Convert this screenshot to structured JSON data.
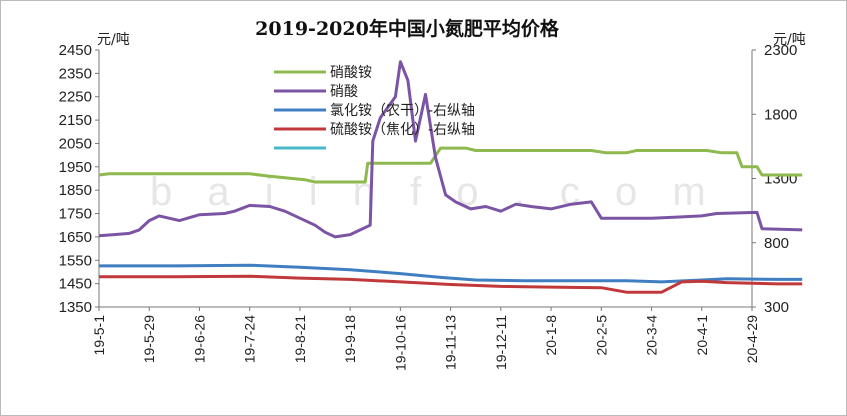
{
  "chart_data": {
    "type": "line",
    "title": "2019-2020年中国小氮肥平均价格",
    "ylabel_left": "元/吨",
    "ylabel_right": "元/吨",
    "watermark": "b a i i n f o . c o m",
    "left_axis": {
      "min": 1350,
      "max": 2450,
      "ticks": [
        1350,
        1450,
        1550,
        1650,
        1750,
        1850,
        1950,
        2050,
        2150,
        2250,
        2350,
        2450
      ]
    },
    "right_axis": {
      "min": 300,
      "max": 2300,
      "ticks": [
        300,
        800,
        1300,
        1800,
        2300
      ]
    },
    "x_ticks": [
      "19-5-1",
      "19-5-29",
      "19-6-26",
      "19-7-24",
      "19-8-21",
      "19-9-18",
      "19-10-16",
      "19-11-13",
      "19-12-11",
      "20-1-8",
      "20-2-5",
      "20-3-4",
      "20-4-1",
      "20-4-29"
    ],
    "legend_placement": "top-center",
    "series": [
      {
        "name": "硝酸铵",
        "axis": "left",
        "color": "#8db94e",
        "points": [
          [
            0,
            1915
          ],
          [
            0.2,
            1920
          ],
          [
            3,
            1920
          ],
          [
            3.4,
            1910
          ],
          [
            4.1,
            1895
          ],
          [
            4.3,
            1885
          ],
          [
            5.3,
            1885
          ],
          [
            5.35,
            1965
          ],
          [
            6.6,
            1965
          ],
          [
            6.8,
            2030
          ],
          [
            7.3,
            2030
          ],
          [
            7.5,
            2020
          ],
          [
            9.8,
            2020
          ],
          [
            10.1,
            2010
          ],
          [
            10.5,
            2010
          ],
          [
            10.7,
            2020
          ],
          [
            12.1,
            2020
          ],
          [
            12.4,
            2010
          ],
          [
            12.7,
            2010
          ],
          [
            12.8,
            1950
          ],
          [
            13.1,
            1950
          ],
          [
            13.2,
            1915
          ],
          [
            14,
            1915
          ]
        ]
      },
      {
        "name": "硝酸",
        "axis": "left",
        "color": "#7b54a4",
        "points": [
          [
            0,
            1655
          ],
          [
            0.3,
            1660
          ],
          [
            0.6,
            1665
          ],
          [
            0.8,
            1680
          ],
          [
            1.0,
            1720
          ],
          [
            1.2,
            1740
          ],
          [
            1.6,
            1720
          ],
          [
            2.0,
            1745
          ],
          [
            2.5,
            1750
          ],
          [
            2.7,
            1760
          ],
          [
            3.0,
            1785
          ],
          [
            3.4,
            1780
          ],
          [
            3.7,
            1760
          ],
          [
            4.0,
            1730
          ],
          [
            4.3,
            1700
          ],
          [
            4.5,
            1670
          ],
          [
            4.7,
            1650
          ],
          [
            5.0,
            1660
          ],
          [
            5.2,
            1680
          ],
          [
            5.4,
            1700
          ],
          [
            5.45,
            2060
          ],
          [
            5.6,
            2160
          ],
          [
            5.9,
            2250
          ],
          [
            6.0,
            2400
          ],
          [
            6.15,
            2320
          ],
          [
            6.3,
            2060
          ],
          [
            6.5,
            2260
          ],
          [
            6.7,
            1990
          ],
          [
            6.9,
            1830
          ],
          [
            7.1,
            1800
          ],
          [
            7.4,
            1770
          ],
          [
            7.7,
            1780
          ],
          [
            8.0,
            1760
          ],
          [
            8.3,
            1790
          ],
          [
            8.6,
            1780
          ],
          [
            9.0,
            1770
          ],
          [
            9.4,
            1790
          ],
          [
            9.8,
            1800
          ],
          [
            10.0,
            1730
          ],
          [
            11.0,
            1730
          ],
          [
            11.5,
            1735
          ],
          [
            12.0,
            1740
          ],
          [
            12.3,
            1750
          ],
          [
            13.1,
            1755
          ],
          [
            13.2,
            1685
          ],
          [
            14,
            1680
          ]
        ]
      },
      {
        "name": "氯化铵（农干）-右纵轴",
        "axis": "right",
        "color": "#3f7fc1",
        "points": [
          [
            0,
            620
          ],
          [
            1.5,
            620
          ],
          [
            3.0,
            625
          ],
          [
            4.0,
            610
          ],
          [
            5.0,
            590
          ],
          [
            6.0,
            560
          ],
          [
            6.8,
            530
          ],
          [
            7.5,
            510
          ],
          [
            8.5,
            505
          ],
          [
            10.5,
            505
          ],
          [
            11.2,
            495
          ],
          [
            12.0,
            510
          ],
          [
            12.5,
            520
          ],
          [
            13.5,
            515
          ],
          [
            14,
            515
          ]
        ]
      },
      {
        "name": "硫酸铵（焦化）-右纵轴",
        "axis": "right",
        "color": "#c0383a",
        "points": [
          [
            0,
            535
          ],
          [
            1.5,
            535
          ],
          [
            3.0,
            540
          ],
          [
            4.0,
            525
          ],
          [
            5.0,
            515
          ],
          [
            6.0,
            495
          ],
          [
            7.0,
            475
          ],
          [
            8.0,
            460
          ],
          [
            9.0,
            455
          ],
          [
            10.0,
            450
          ],
          [
            10.5,
            415
          ],
          [
            11.2,
            415
          ],
          [
            11.6,
            495
          ],
          [
            12.0,
            500
          ],
          [
            12.5,
            490
          ],
          [
            13.5,
            480
          ],
          [
            14,
            480
          ]
        ]
      },
      {
        "name": "",
        "axis": "right",
        "color": "#46b8c8",
        "points": []
      }
    ]
  }
}
